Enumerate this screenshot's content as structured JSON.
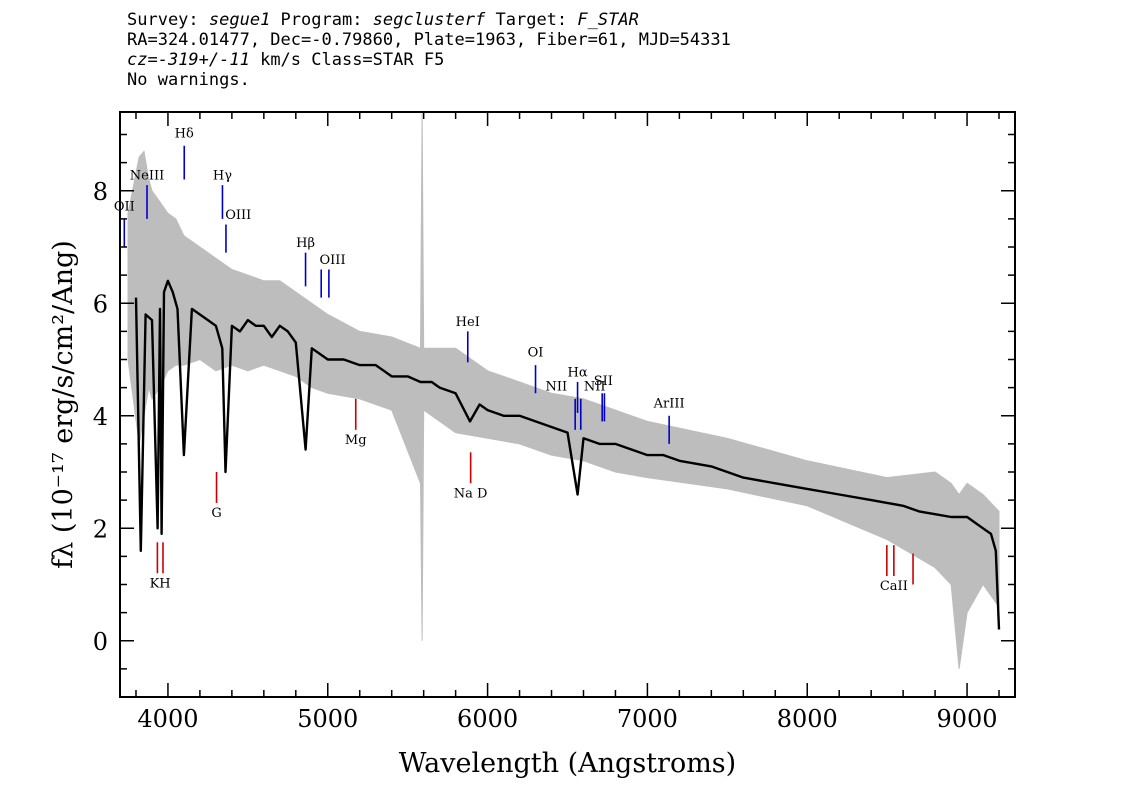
{
  "header": {
    "line1": {
      "survey_label": "Survey: ",
      "survey": "segue1",
      "program_label": " Program: ",
      "program": "segclusterf",
      "target_label": " Target: ",
      "target": "F_STAR"
    },
    "line2": "RA=324.01477, Dec=-0.79860, Plate=1963, Fiber=61, MJD=54331",
    "line3": {
      "cz_label": "cz=",
      "cz": "-319+/-11",
      "rest": " km/s Class=STAR F5"
    },
    "line4": "No warnings."
  },
  "chart_data": {
    "type": "line",
    "xlabel": "Wavelength (Angstroms)",
    "ylabel": "fλ (10⁻¹⁷ erg/s/cm²/Ang)",
    "xlim": [
      3700,
      9300
    ],
    "ylim": [
      -1,
      9.4
    ],
    "x_ticks": [
      4000,
      5000,
      6000,
      7000,
      8000,
      9000
    ],
    "y_ticks": [
      0,
      2,
      4,
      6,
      8
    ],
    "colors": {
      "flux": "#000000",
      "error": "#bdbdbd",
      "emission": "#0000cc",
      "absorption": "#cc0000"
    },
    "series": [
      {
        "kind": "smoothed flux (black)",
        "x": [
          3800,
          3830,
          3860,
          3900,
          3935,
          3950,
          3960,
          3975,
          4000,
          4030,
          4060,
          4100,
          4150,
          4200,
          4250,
          4300,
          4340,
          4360,
          4400,
          4450,
          4500,
          4550,
          4600,
          4650,
          4700,
          4750,
          4800,
          4861,
          4900,
          4950,
          5000,
          5100,
          5200,
          5300,
          5400,
          5500,
          5580,
          5650,
          5700,
          5800,
          5890,
          5950,
          6000,
          6100,
          6200,
          6300,
          6400,
          6500,
          6563,
          6600,
          6700,
          6800,
          6900,
          7000,
          7100,
          7200,
          7400,
          7600,
          7800,
          8000,
          8200,
          8400,
          8500,
          8600,
          8700,
          8800,
          8900,
          9000,
          9050,
          9100,
          9150,
          9180,
          9200
        ],
        "y": [
          6.1,
          1.6,
          5.8,
          5.7,
          2.0,
          5.9,
          1.9,
          6.2,
          6.4,
          6.2,
          5.9,
          3.3,
          5.9,
          5.8,
          5.7,
          5.6,
          5.2,
          3.0,
          5.6,
          5.5,
          5.7,
          5.6,
          5.6,
          5.4,
          5.6,
          5.5,
          5.3,
          3.4,
          5.2,
          5.1,
          5.0,
          5.0,
          4.9,
          4.9,
          4.7,
          4.7,
          4.6,
          4.6,
          4.5,
          4.4,
          3.9,
          4.2,
          4.1,
          4.0,
          4.0,
          3.9,
          3.8,
          3.7,
          2.6,
          3.6,
          3.5,
          3.5,
          3.4,
          3.3,
          3.3,
          3.2,
          3.1,
          2.9,
          2.8,
          2.7,
          2.6,
          2.5,
          2.45,
          2.4,
          2.3,
          2.25,
          2.2,
          2.2,
          2.1,
          2.0,
          1.9,
          1.6,
          0.2
        ]
      },
      {
        "kind": "error / unsmoothed flux (grey)",
        "x": [
          3750,
          3820,
          3850,
          3880,
          3900,
          3950,
          4000,
          4050,
          4100,
          4200,
          4300,
          4400,
          4500,
          4600,
          4700,
          4800,
          4900,
          5000,
          5200,
          5400,
          5580,
          5590,
          5600,
          5800,
          6000,
          6200,
          6400,
          6600,
          6800,
          7000,
          7500,
          8000,
          8500,
          8800,
          8900,
          8950,
          9000,
          9100,
          9200
        ],
        "y_low": [
          5.0,
          3.5,
          4.0,
          4.5,
          4.3,
          4.5,
          4.8,
          4.9,
          4.9,
          5.0,
          4.8,
          4.9,
          4.8,
          4.9,
          4.8,
          4.7,
          4.5,
          4.4,
          4.3,
          4.1,
          2.8,
          0.0,
          4.1,
          3.7,
          3.6,
          3.5,
          3.3,
          3.2,
          3.0,
          2.9,
          2.7,
          2.4,
          1.8,
          1.3,
          1.0,
          -0.5,
          0.5,
          1.0,
          0.6
        ],
        "y_high": [
          7.6,
          8.6,
          8.7,
          8.2,
          8.0,
          7.8,
          7.6,
          7.5,
          7.2,
          7.0,
          6.8,
          6.6,
          6.5,
          6.4,
          6.4,
          6.2,
          6.0,
          5.8,
          5.5,
          5.4,
          5.2,
          9.4,
          5.2,
          5.2,
          4.8,
          4.6,
          4.4,
          4.3,
          4.1,
          3.9,
          3.6,
          3.2,
          2.9,
          3.0,
          2.8,
          2.6,
          2.8,
          2.6,
          2.3
        ]
      }
    ],
    "annotations": {
      "emission": [
        {
          "label": "OII",
          "x": 3727,
          "y1": 7.0,
          "y2": 7.5
        },
        {
          "label": "NeIII",
          "x": 3869,
          "y1": 7.5,
          "y2": 8.1
        },
        {
          "label": "Hδ",
          "x": 4102,
          "y1": 8.2,
          "y2": 8.8
        },
        {
          "label": "Hγ",
          "x": 4341,
          "y1": 7.5,
          "y2": 8.1
        },
        {
          "label": "OIII",
          "x": 4363,
          "y1": 6.9,
          "y2": 7.4
        },
        {
          "label": "Hβ",
          "x": 4861,
          "y1": 6.3,
          "y2": 6.9
        },
        {
          "label": "OIII",
          "x": 4959,
          "y1": 6.1,
          "y2": 6.6
        },
        {
          "label": "OIII",
          "x": 5007,
          "y1": 6.1,
          "y2": 6.6
        },
        {
          "label": "HeI",
          "x": 5876,
          "y1": 4.95,
          "y2": 5.5
        },
        {
          "label": "OI",
          "x": 6300,
          "y1": 4.4,
          "y2": 4.9
        },
        {
          "label": "NII",
          "x": 6548,
          "y1": 3.75,
          "y2": 4.3
        },
        {
          "label": "Hα",
          "x": 6563,
          "y1": 4.05,
          "y2": 4.6
        },
        {
          "label": "NII",
          "x": 6583,
          "y1": 3.75,
          "y2": 4.3
        },
        {
          "label": "SII",
          "x": 6717,
          "y1": 3.9,
          "y2": 4.4
        },
        {
          "label": "SII",
          "x": 6731,
          "y1": 3.9,
          "y2": 4.4
        },
        {
          "label": "ArIII",
          "x": 7136,
          "y1": 3.5,
          "y2": 4.0
        }
      ],
      "absorption": [
        {
          "label": "K",
          "x": 3934,
          "y1": 1.2,
          "y2": 1.75
        },
        {
          "label": "H",
          "x": 3969,
          "y1": 1.2,
          "y2": 1.75
        },
        {
          "label": "G",
          "x": 4304,
          "y1": 2.45,
          "y2": 3.0
        },
        {
          "label": "Mg",
          "x": 5175,
          "y1": 3.75,
          "y2": 4.3
        },
        {
          "label": "Na D",
          "x": 5894,
          "y1": 2.8,
          "y2": 3.35
        },
        {
          "label": "CaII",
          "x": 8498,
          "y1": 1.15,
          "y2": 1.7
        },
        {
          "label": "CaII",
          "x": 8542,
          "y1": 1.15,
          "y2": 1.7
        },
        {
          "label": "CaII",
          "x": 8662,
          "y1": 1.0,
          "y2": 1.55
        }
      ]
    },
    "visible_labels": [
      {
        "text": "OII",
        "x": 3727,
        "y": 7.65,
        "kind": "emission"
      },
      {
        "text": "NeIII",
        "x": 3869,
        "y": 8.2,
        "kind": "emission"
      },
      {
        "text": "Hδ",
        "x": 4102,
        "y": 8.95,
        "kind": "emission"
      },
      {
        "text": "Hγ",
        "x": 4341,
        "y": 8.2,
        "kind": "emission"
      },
      {
        "text": "OIII",
        "x": 4440,
        "y": 7.5,
        "kind": "emission"
      },
      {
        "text": "Hβ",
        "x": 4861,
        "y": 7.0,
        "kind": "emission"
      },
      {
        "text": "OIII",
        "x": 5030,
        "y": 6.7,
        "kind": "emission"
      },
      {
        "text": "HeI",
        "x": 5876,
        "y": 5.6,
        "kind": "emission"
      },
      {
        "text": "OI",
        "x": 6300,
        "y": 5.05,
        "kind": "emission"
      },
      {
        "text": "NII",
        "x": 6430,
        "y": 4.45,
        "kind": "emission"
      },
      {
        "text": "Hα",
        "x": 6563,
        "y": 4.7,
        "kind": "emission"
      },
      {
        "text": "NII",
        "x": 6670,
        "y": 4.45,
        "kind": "emission"
      },
      {
        "text": "SII",
        "x": 6724,
        "y": 4.55,
        "kind": "emission"
      },
      {
        "text": "ArIII",
        "x": 7136,
        "y": 4.15,
        "kind": "emission"
      },
      {
        "text": "KH",
        "x": 3951,
        "y": 0.95,
        "kind": "absorption"
      },
      {
        "text": "G",
        "x": 4304,
        "y": 2.2,
        "kind": "absorption"
      },
      {
        "text": "Mg",
        "x": 5175,
        "y": 3.5,
        "kind": "absorption"
      },
      {
        "text": "Na D",
        "x": 5894,
        "y": 2.55,
        "kind": "absorption"
      },
      {
        "text": "CaII",
        "x": 8542,
        "y": 0.9,
        "kind": "absorption"
      }
    ]
  }
}
